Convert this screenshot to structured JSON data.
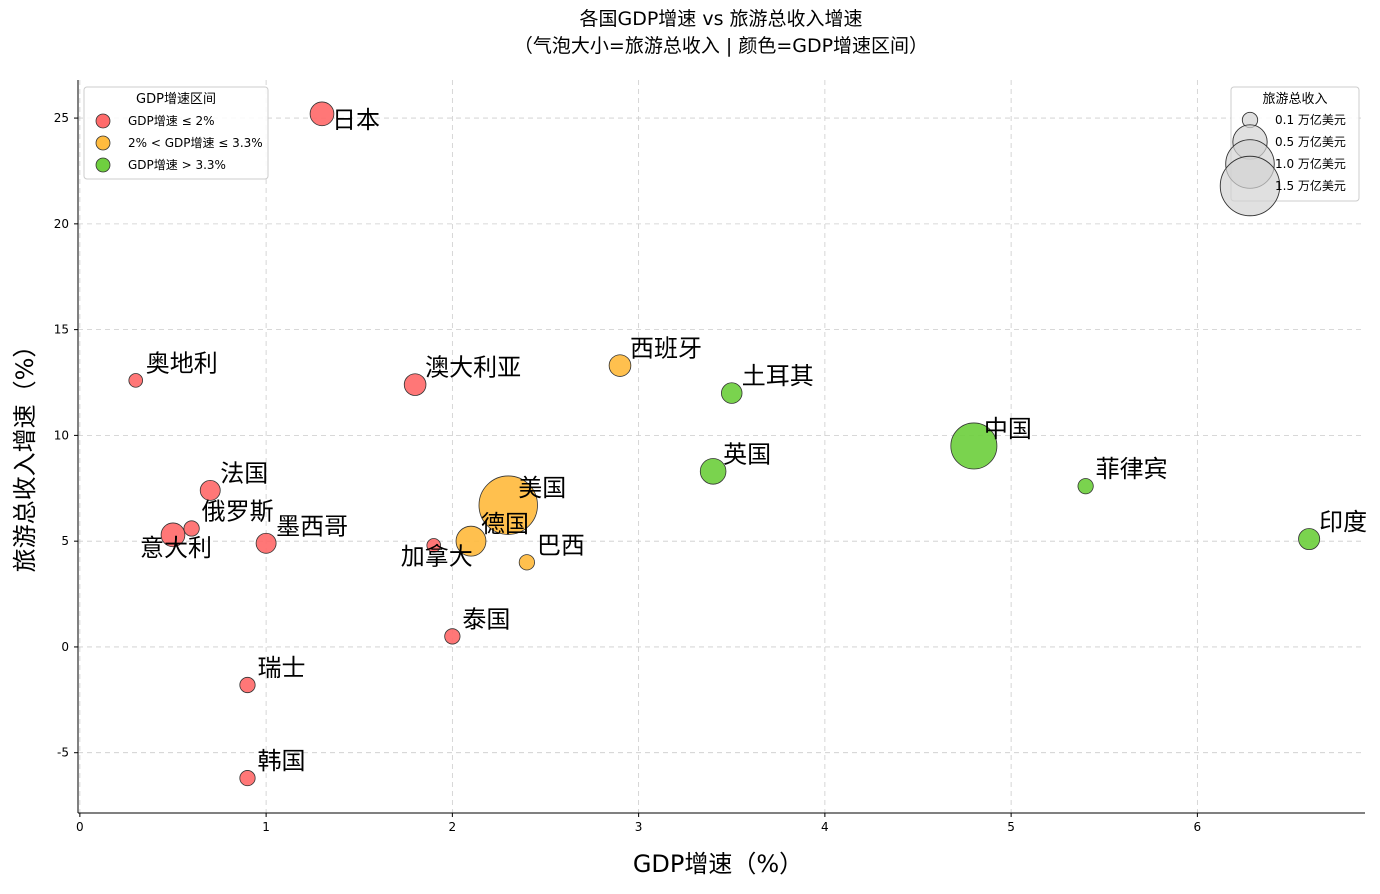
{
  "chart_data": {
    "type": "scatter",
    "title": "各国GDP增速 vs 旅游总收入增速",
    "subtitle": "（气泡大小=旅游总收入 | 颜色=GDP增速区间）",
    "xlabel": "GDP增速（%）",
    "ylabel": "旅游总收入增速（%）",
    "xlim": [
      -0.01,
      6.9
    ],
    "ylim": [
      -7.85,
      26.8
    ],
    "xticks": [
      0,
      1,
      2,
      3,
      4,
      5,
      6
    ],
    "yticks": [
      -5,
      0,
      5,
      10,
      15,
      20,
      25
    ],
    "grid": true,
    "colors": {
      "low": "#ff6b6b",
      "mid": "#ffbb3f",
      "high": "#6fcf3f",
      "size_legend": "#d3d3d3"
    },
    "points": [
      {
        "name": "日本",
        "x": 1.3,
        "y": 25.2,
        "revenue": 0.24,
        "group": "low"
      },
      {
        "name": "奥地利",
        "x": 0.3,
        "y": 12.6,
        "revenue": 0.08,
        "group": "low"
      },
      {
        "name": "澳大利亚",
        "x": 1.8,
        "y": 12.4,
        "revenue": 0.2,
        "group": "low"
      },
      {
        "name": "西班牙",
        "x": 2.9,
        "y": 13.3,
        "revenue": 0.2,
        "group": "mid"
      },
      {
        "name": "土耳其",
        "x": 3.5,
        "y": 12.0,
        "revenue": 0.18,
        "group": "high"
      },
      {
        "name": "中国",
        "x": 4.8,
        "y": 9.5,
        "revenue": 0.9,
        "group": "high"
      },
      {
        "name": "英国",
        "x": 3.4,
        "y": 8.3,
        "revenue": 0.28,
        "group": "high"
      },
      {
        "name": "菲律宾",
        "x": 5.4,
        "y": 7.6,
        "revenue": 0.1,
        "group": "high"
      },
      {
        "name": "印度",
        "x": 6.6,
        "y": 5.1,
        "revenue": 0.19,
        "group": "high"
      },
      {
        "name": "法国",
        "x": 0.7,
        "y": 7.4,
        "revenue": 0.17,
        "group": "low"
      },
      {
        "name": "俄罗斯",
        "x": 0.6,
        "y": 5.6,
        "revenue": 0.1,
        "group": "low"
      },
      {
        "name": "意大利",
        "x": 0.5,
        "y": 5.3,
        "revenue": 0.24,
        "group": "low"
      },
      {
        "name": "墨西哥",
        "x": 1.0,
        "y": 4.9,
        "revenue": 0.17,
        "group": "low"
      },
      {
        "name": "美国",
        "x": 2.3,
        "y": 6.7,
        "revenue": 1.45,
        "group": "mid"
      },
      {
        "name": "德国",
        "x": 2.1,
        "y": 5.0,
        "revenue": 0.38,
        "group": "mid"
      },
      {
        "name": "加拿大",
        "x": 1.9,
        "y": 4.8,
        "revenue": 0.08,
        "group": "low"
      },
      {
        "name": "巴西",
        "x": 2.4,
        "y": 4.0,
        "revenue": 0.1,
        "group": "mid"
      },
      {
        "name": "泰国",
        "x": 2.0,
        "y": 0.5,
        "revenue": 0.1,
        "group": "low"
      },
      {
        "name": "瑞士",
        "x": 0.9,
        "y": -1.8,
        "revenue": 0.1,
        "group": "low"
      },
      {
        "name": "韩国",
        "x": 0.9,
        "y": -6.2,
        "revenue": 0.1,
        "group": "low"
      }
    ],
    "color_legend": {
      "title": "GDP增速区间",
      "placement": "top-left",
      "items": [
        {
          "label": "GDP增速 ≤ 2%",
          "group": "low"
        },
        {
          "label": "2% < GDP增速 ≤ 3.3%",
          "group": "mid"
        },
        {
          "label": "GDP增速 > 3.3%",
          "group": "high"
        }
      ]
    },
    "size_legend": {
      "title": "旅游总收入",
      "placement": "top-right",
      "items": [
        {
          "label": "0.1 万亿美元",
          "value": 0.1
        },
        {
          "label": "0.5 万亿美元",
          "value": 0.5
        },
        {
          "label": "1.0 万亿美元",
          "value": 1.0
        },
        {
          "label": "1.5 万亿美元",
          "value": 1.5
        }
      ]
    }
  }
}
